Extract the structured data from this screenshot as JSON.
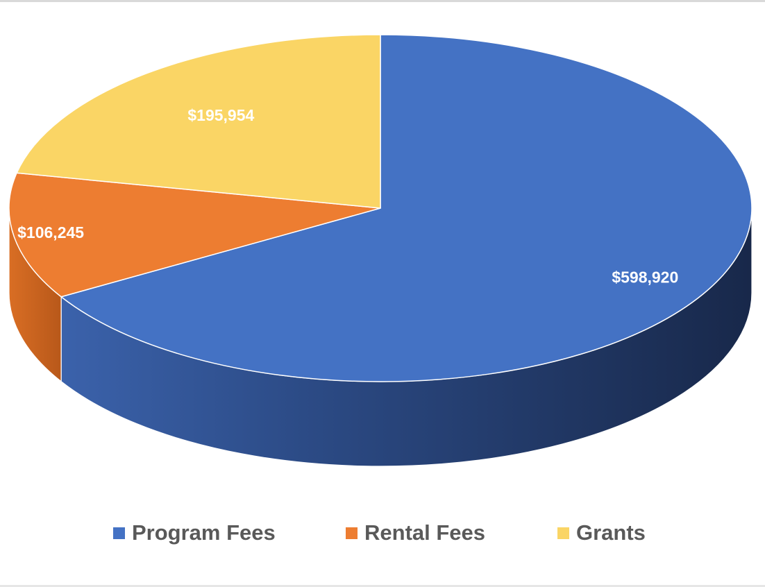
{
  "chart_data": {
    "type": "pie",
    "title": "",
    "style": "3d",
    "categories": [
      "Program Fees",
      "Rental Fees",
      "Grants"
    ],
    "values": [
      598920,
      106245,
      195954
    ],
    "data_labels": [
      "$598,920",
      "$106,245",
      "$195,954"
    ],
    "colors": [
      "#4472c4",
      "#ed7d31",
      "#fad565"
    ],
    "legend": "bottom"
  }
}
